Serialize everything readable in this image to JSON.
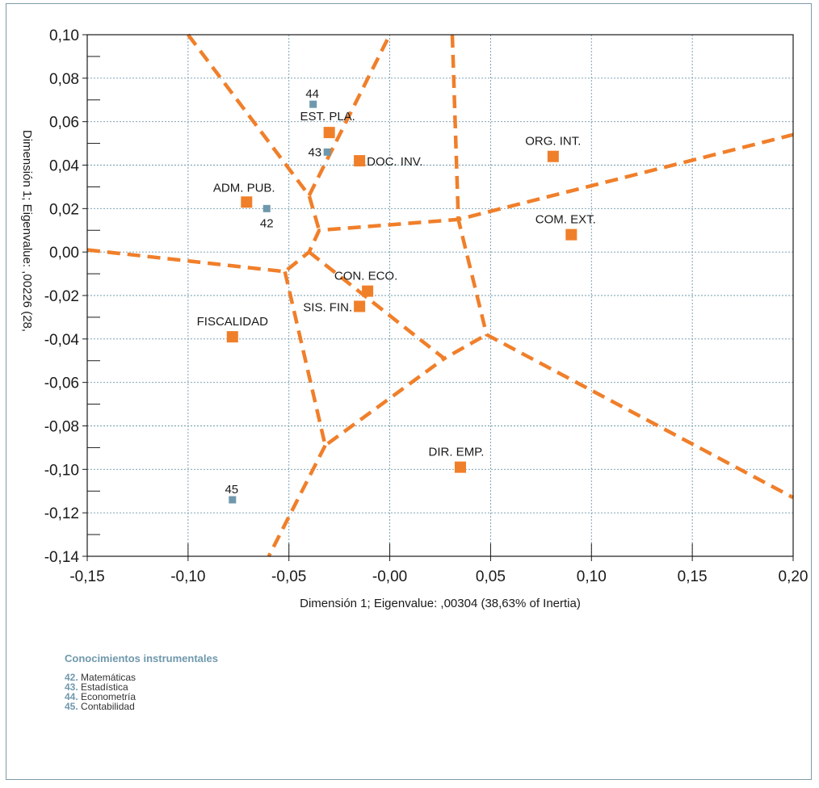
{
  "chart_data": {
    "type": "scatter",
    "xlabel": "Dimensión 1; Eigenvalue: ,00304 (38,63% of Inertia)",
    "ylabel": "Dimensión 1; Eigenvalue: ,00226 (28,",
    "xlim": [
      -0.15,
      0.2
    ],
    "ylim": [
      -0.14,
      0.1
    ],
    "xticks": [
      -0.15,
      -0.1,
      -0.05,
      0.0,
      0.05,
      0.1,
      0.15,
      0.2
    ],
    "xtick_labels": [
      "-0,15",
      "-0,10",
      "-0,05",
      "-0,00",
      "0,05",
      "0,10",
      "0,15",
      "0,20"
    ],
    "yticks": [
      0.1,
      0.08,
      0.06,
      0.04,
      0.02,
      0.0,
      -0.02,
      -0.04,
      -0.06,
      -0.08,
      -0.1,
      -0.12,
      -0.14
    ],
    "ytick_labels": [
      "0,10",
      "0,08",
      "0,06",
      "0,04",
      "0,02",
      "0,00",
      "-0,02",
      "-0,04",
      "-0,06",
      "-0,08",
      "-0,10",
      "-0,12",
      "-0,14"
    ],
    "grid": true,
    "colors": {
      "orange": "#f07f2a",
      "blue": "#6f98ac",
      "grid": "#6f98ac"
    },
    "series": [
      {
        "color": "#f07f2a",
        "marker": "square",
        "points": [
          {
            "label": "EST. PLA.",
            "x": -0.03,
            "y": 0.055
          },
          {
            "label": "DOC. INV.",
            "x": -0.015,
            "y": 0.042
          },
          {
            "label": "ORG. INT.",
            "x": 0.081,
            "y": 0.044
          },
          {
            "label": "ADM. PUB.",
            "x": -0.071,
            "y": 0.023
          },
          {
            "label": "COM. EXT.",
            "x": 0.09,
            "y": 0.008
          },
          {
            "label": "CON. ECO.",
            "x": -0.011,
            "y": -0.018
          },
          {
            "label": "SIS. FIN.",
            "x": -0.015,
            "y": -0.025
          },
          {
            "label": "FISCALIDAD",
            "x": -0.078,
            "y": -0.039
          },
          {
            "label": "DIR. EMP.",
            "x": 0.035,
            "y": -0.099
          }
        ]
      },
      {
        "color": "#6f98ac",
        "marker": "square",
        "points": [
          {
            "label": "44",
            "x": -0.038,
            "y": 0.068
          },
          {
            "label": "43",
            "x": -0.031,
            "y": 0.046
          },
          {
            "label": "42",
            "x": -0.061,
            "y": 0.02
          },
          {
            "label": "45",
            "x": -0.078,
            "y": -0.114
          }
        ]
      }
    ],
    "boundaries": [
      [
        [
          -0.15,
          0.001
        ],
        [
          -0.052,
          -0.009
        ],
        [
          -0.04,
          0.0
        ],
        [
          -0.035,
          0.01
        ],
        [
          0.034,
          0.015
        ],
        [
          0.2,
          0.054
        ]
      ],
      [
        [
          -0.1,
          0.1
        ],
        [
          -0.04,
          0.026
        ],
        [
          -0.035,
          0.01
        ]
      ],
      [
        [
          -0.04,
          0.026
        ],
        [
          0.0,
          0.1
        ]
      ],
      [
        [
          0.031,
          0.1
        ],
        [
          0.034,
          0.015
        ],
        [
          0.048,
          -0.038
        ],
        [
          0.2,
          -0.113
        ]
      ],
      [
        [
          -0.04,
          0.0
        ],
        [
          0.027,
          -0.049
        ],
        [
          0.048,
          -0.038
        ]
      ],
      [
        [
          -0.052,
          -0.009
        ],
        [
          -0.032,
          -0.089
        ],
        [
          0.027,
          -0.049
        ]
      ],
      [
        [
          -0.032,
          -0.089
        ],
        [
          -0.06,
          -0.14
        ]
      ]
    ]
  },
  "legend": {
    "title": "Conocimientos instrumentales",
    "items": [
      {
        "num": "42.",
        "text": "Matemáticas"
      },
      {
        "num": "43.",
        "text": "Estadística"
      },
      {
        "num": "44.",
        "text": "Econometría"
      },
      {
        "num": "45.",
        "text": "Contabilidad"
      }
    ]
  }
}
